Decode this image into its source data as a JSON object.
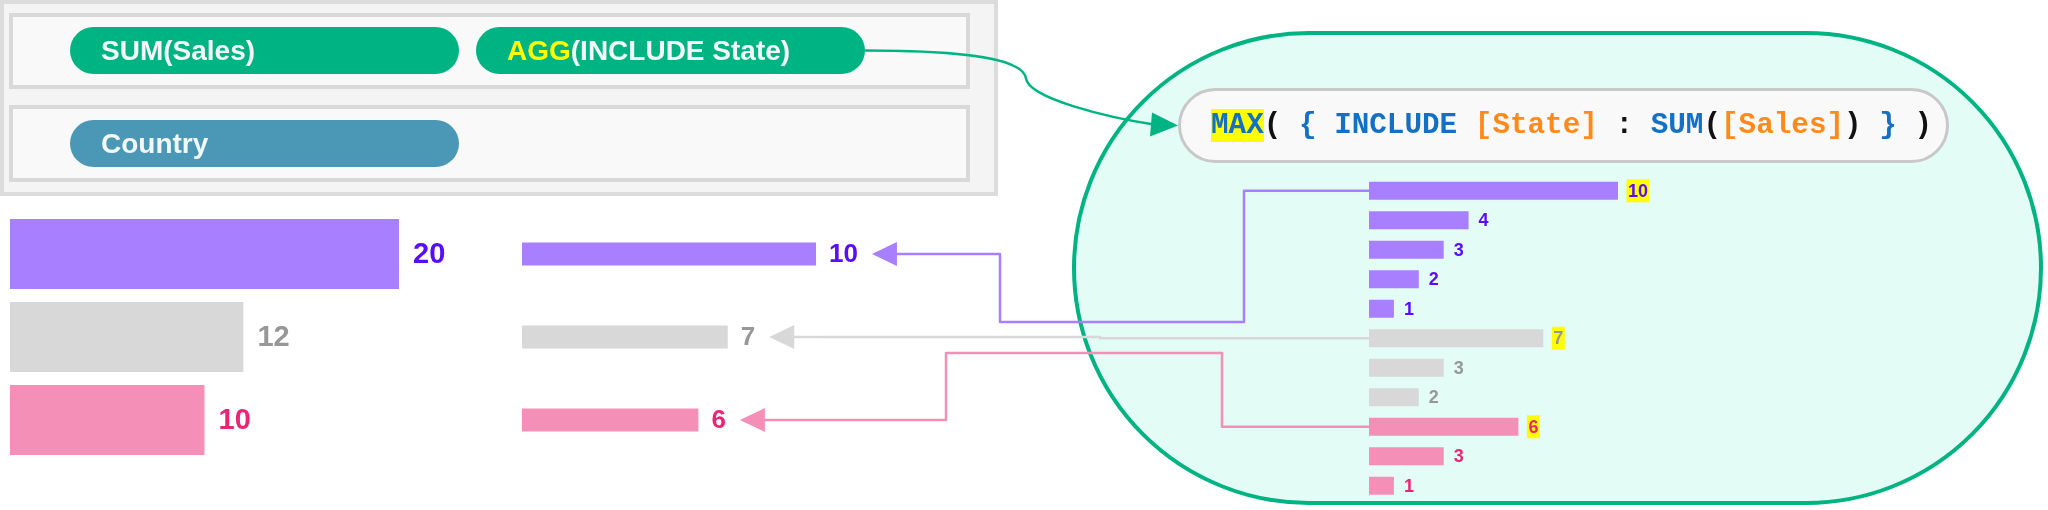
{
  "chart_data": [
    {
      "type": "other",
      "annotations": [
        "SUM(Sales)",
        "AGG(INCLUDE State)",
        "Country"
      ]
    },
    {
      "type": "bar",
      "orientation": "horizontal",
      "categories": [
        null,
        null,
        null
      ],
      "values": [
        20,
        12,
        10
      ],
      "colors": [
        "#a880ff",
        "#d8d8d8",
        "#f48fb8"
      ],
      "data_labels": true,
      "tick_labels": false
    },
    {
      "type": "bar",
      "orientation": "horizontal",
      "categories": [
        null,
        null,
        null
      ],
      "values": [
        10,
        7,
        6
      ],
      "colors": [
        "#a880ff",
        "#d8d8d8",
        "#f48fb8"
      ],
      "data_labels": true,
      "tick_labels": false
    },
    {
      "type": "bar",
      "orientation": "horizontal",
      "title": "MAX( { INCLUDE [State] : SUM([Sales]) } )",
      "categories": [
        null,
        null,
        null,
        null,
        null,
        null,
        null,
        null,
        null,
        null,
        null
      ],
      "values": [
        10,
        4,
        3,
        2,
        1,
        7,
        3,
        2,
        6,
        3,
        1
      ],
      "colors": [
        "#a880ff",
        "#a880ff",
        "#a880ff",
        "#a880ff",
        "#a880ff",
        "#d8d8d8",
        "#d8d8d8",
        "#d8d8d8",
        "#f48fb8",
        "#f48fb8",
        "#f48fb8"
      ],
      "data_labels": true,
      "tick_labels": false
    }
  ]
}
